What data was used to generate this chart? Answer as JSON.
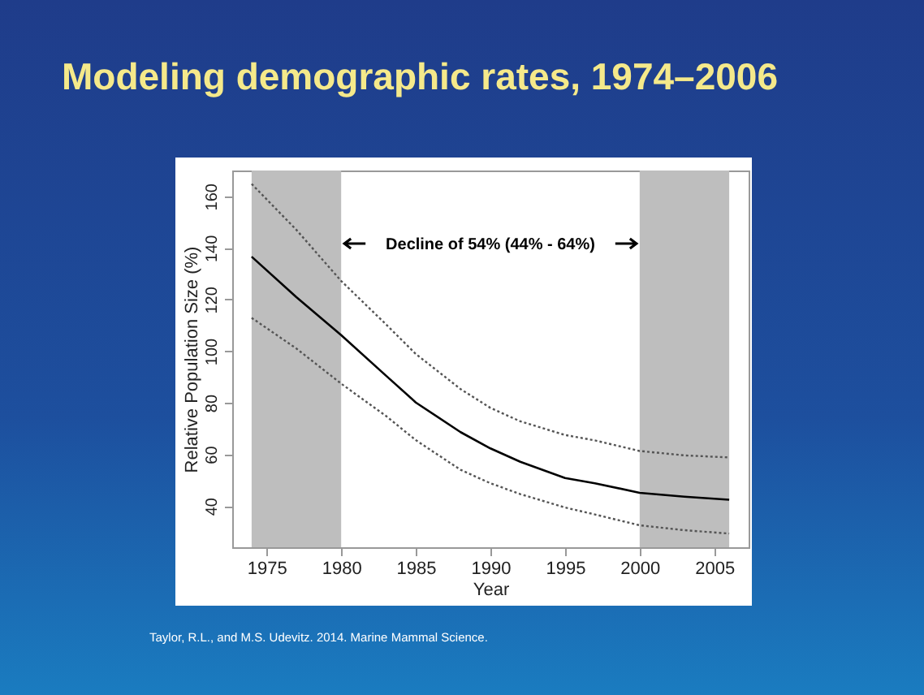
{
  "chart_data": {
    "type": "line",
    "title": "Modeling demographic rates, 1974–2006",
    "xlabel": "Year",
    "ylabel": "Relative Population Size (%)",
    "x": [
      1974,
      1977,
      1980,
      1983,
      1985,
      1988,
      1990,
      1992,
      1995,
      1997,
      2000,
      2003,
      2006
    ],
    "series": [
      {
        "color": "#000000",
        "line_style": "solid",
        "values": [
          136.6,
          120.9,
          106.2,
          90.5,
          80.1,
          68.6,
          62.3,
          57.1,
          50.8,
          48.8,
          45.1,
          43.6,
          42.4
        ]
      },
      {
        "color": "#555555",
        "line_style": "dotted",
        "values": [
          164.8,
          147,
          127.2,
          110.4,
          98.9,
          85.3,
          78,
          72.8,
          67.5,
          65.4,
          61.3,
          59.6,
          58.8
        ]
      },
      {
        "color": "#555555",
        "line_style": "dotted",
        "values": [
          112.9,
          101,
          87.4,
          74.9,
          65.5,
          54,
          48.8,
          44.6,
          39.4,
          36.7,
          32.5,
          30.6,
          29.3
        ]
      }
    ],
    "xlim": [
      1972.7,
      2007.3
    ],
    "xticks": [
      1975,
      1980,
      1985,
      1990,
      1995,
      2000,
      2005
    ],
    "ylim": [
      24,
      170
    ],
    "yticks": [
      40,
      60,
      80,
      100,
      120,
      140,
      160
    ],
    "bands": [
      {
        "axis": "x",
        "from": 1974,
        "to": 1980,
        "color": "#bebebe"
      },
      {
        "axis": "x",
        "from": 2000,
        "to": 2006,
        "color": "#bebebe"
      }
    ],
    "annotations": [
      "Decline of 54% (44% - 64%)",
      "Taylor, R.L., and M.S. Udevitz. 2014. Marine Mammal Science."
    ],
    "grid": false,
    "marker": "none"
  }
}
